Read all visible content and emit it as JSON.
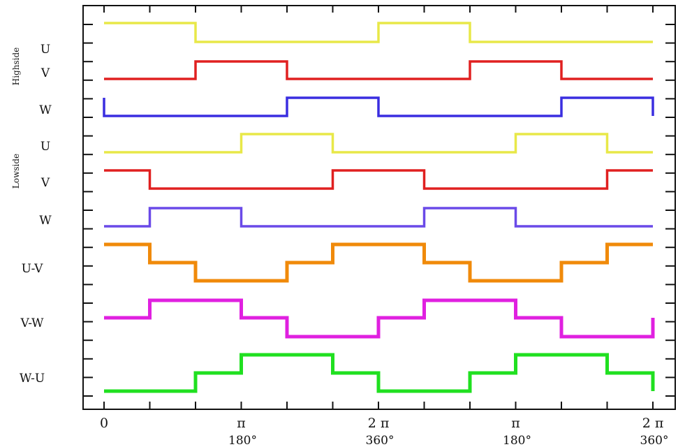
{
  "chart_data": {
    "type": "line",
    "title": "",
    "xlabel": "",
    "ylabel": "",
    "x_unit": "degrees",
    "xlim": [
      0,
      720
    ],
    "grid": false,
    "group_labels": [
      "Highside",
      "Lowside"
    ],
    "x_ticks": [
      {
        "value": 0,
        "label": "0",
        "sub": ""
      },
      {
        "value": 180,
        "label": "π",
        "sub": "180°"
      },
      {
        "value": 360,
        "label": "2 π",
        "sub": "360°"
      },
      {
        "value": 540,
        "label": "π",
        "sub": "180°"
      },
      {
        "value": 720,
        "label": "2 π",
        "sub": "360°"
      }
    ],
    "series": [
      {
        "name": "U",
        "group": "Highside",
        "color": "#e8e848",
        "levels": [
          -1,
          0
        ],
        "steps": [
          [
            0,
            1
          ],
          [
            120,
            0
          ],
          [
            360,
            1
          ],
          [
            480,
            0
          ],
          [
            720,
            0
          ]
        ]
      },
      {
        "name": "V",
        "group": "Highside",
        "color": "#e02020",
        "levels": [
          0,
          1
        ],
        "steps": [
          [
            0,
            0
          ],
          [
            120,
            1
          ],
          [
            240,
            0
          ],
          [
            480,
            1
          ],
          [
            600,
            0
          ],
          [
            720,
            0
          ]
        ]
      },
      {
        "name": "W",
        "group": "Highside",
        "color": "#3a2ee0",
        "levels": [
          0,
          1
        ],
        "steps": [
          [
            0,
            1
          ],
          [
            0.01,
            0
          ],
          [
            240,
            1
          ],
          [
            360,
            0
          ],
          [
            600,
            1
          ],
          [
            720,
            0
          ]
        ]
      },
      {
        "name": "U",
        "group": "Lowside",
        "color": "#e8e848",
        "levels": [
          0,
          1
        ],
        "steps": [
          [
            0,
            0
          ],
          [
            180,
            1
          ],
          [
            300,
            0
          ],
          [
            540,
            1
          ],
          [
            660,
            0
          ],
          [
            720,
            0
          ]
        ]
      },
      {
        "name": "V",
        "group": "Lowside",
        "color": "#e02020",
        "levels": [
          0,
          1
        ],
        "steps": [
          [
            0,
            1
          ],
          [
            60,
            0
          ],
          [
            300,
            1
          ],
          [
            420,
            0
          ],
          [
            660,
            1
          ],
          [
            720,
            1
          ]
        ]
      },
      {
        "name": "W",
        "group": "Lowside",
        "color": "#6a4ae8",
        "levels": [
          0,
          1
        ],
        "steps": [
          [
            0,
            0
          ],
          [
            60,
            1
          ],
          [
            180,
            0
          ],
          [
            420,
            1
          ],
          [
            540,
            0
          ],
          [
            720,
            0
          ]
        ]
      },
      {
        "name": "U-V",
        "group": "",
        "color": "#f08a0a",
        "levels": [
          -1,
          0,
          1
        ],
        "steps": [
          [
            0,
            1
          ],
          [
            60,
            0
          ],
          [
            120,
            -1
          ],
          [
            240,
            0
          ],
          [
            300,
            1
          ],
          [
            420,
            0
          ],
          [
            480,
            -1
          ],
          [
            600,
            0
          ],
          [
            660,
            1
          ],
          [
            720,
            1
          ]
        ]
      },
      {
        "name": "V-W",
        "group": "",
        "color": "#e020e0",
        "levels": [
          -1,
          0,
          1
        ],
        "steps": [
          [
            0,
            0
          ],
          [
            60,
            1
          ],
          [
            180,
            0
          ],
          [
            240,
            -1
          ],
          [
            360,
            0
          ],
          [
            420,
            1
          ],
          [
            540,
            0
          ],
          [
            600,
            -1
          ],
          [
            720,
            0
          ]
        ]
      },
      {
        "name": "W-U",
        "group": "",
        "color": "#20e020",
        "levels": [
          -1,
          0,
          1
        ],
        "steps": [
          [
            0,
            -1
          ],
          [
            120,
            0
          ],
          [
            180,
            1
          ],
          [
            300,
            0
          ],
          [
            360,
            -1
          ],
          [
            480,
            0
          ],
          [
            540,
            1
          ],
          [
            660,
            0
          ],
          [
            720,
            -1
          ]
        ]
      }
    ]
  }
}
